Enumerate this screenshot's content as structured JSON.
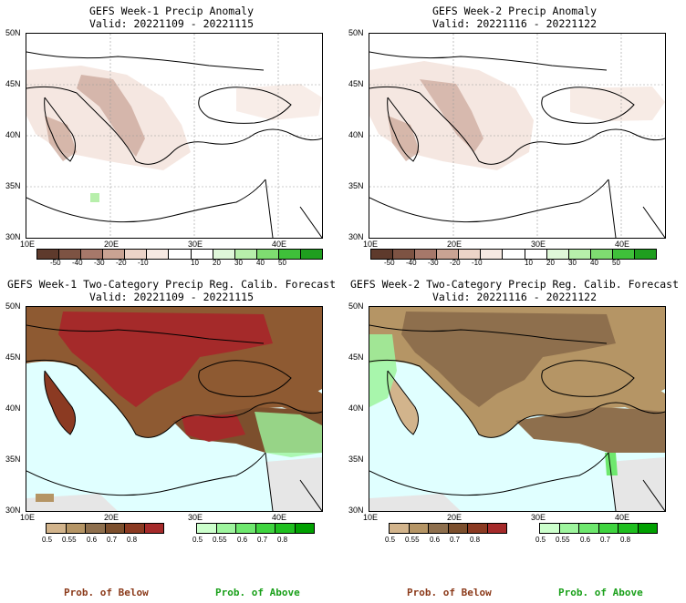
{
  "panels": {
    "p1": {
      "title": "GEFS Week-1 Precip Anomaly",
      "valid": "Valid: 20221109 - 20221115"
    },
    "p2": {
      "title": "GEFS Week-2 Precip Anomaly",
      "valid": "Valid: 20221116 - 20221122"
    },
    "p3": {
      "title": "GEFS Week-1 Two-Category Precip Reg. Calib. Forecast",
      "valid": "Valid: 20221109 - 20221115"
    },
    "p4": {
      "title": "GEFS Week-2 Two-Category Precip Reg. Calib. Forecast",
      "valid": "Valid: 20221116 - 20221122"
    }
  },
  "axes": {
    "lat_labels": [
      "50N",
      "45N",
      "40N",
      "35N",
      "30N"
    ],
    "lon_labels": [
      "10E",
      "20E",
      "30E",
      "40E"
    ]
  },
  "anomaly_colorbar": {
    "ticks": [
      "-50",
      "-40",
      "-30",
      "-20",
      "-10",
      "10",
      "20",
      "30",
      "40",
      "50"
    ],
    "colors": [
      "#5e3a2c",
      "#7d5343",
      "#a6786a",
      "#c9a393",
      "#ecd4c8",
      "#f6e9e2",
      "#ffffff",
      "#ffffff",
      "#dff7d9",
      "#b7efab",
      "#7fdc71",
      "#3fc03a",
      "#1f9e1f"
    ]
  },
  "prob_colorbar_below": {
    "ticks": [
      "0.5",
      "0.55",
      "0.6",
      "0.7",
      "0.8"
    ],
    "colors": [
      "#d2b48c",
      "#b59565",
      "#8e6f4d",
      "#7c4f2d",
      "#8b3a22",
      "#a52a2a"
    ]
  },
  "prob_colorbar_above": {
    "ticks": [
      "0.5",
      "0.55",
      "0.6",
      "0.7",
      "0.8"
    ],
    "colors": [
      "#ccffcc",
      "#9ef59e",
      "#6ee86e",
      "#3fd43f",
      "#1fbf1f",
      "#00a000"
    ]
  },
  "footer": {
    "below_label": "Prob. of Below",
    "above_label": "Prob. of Above"
  },
  "colors": {
    "ocean_prob": "#e0ffff",
    "no_data": "#e6e6e6",
    "below_text": "#8b3a1a",
    "above_text": "#1aa01a"
  }
}
